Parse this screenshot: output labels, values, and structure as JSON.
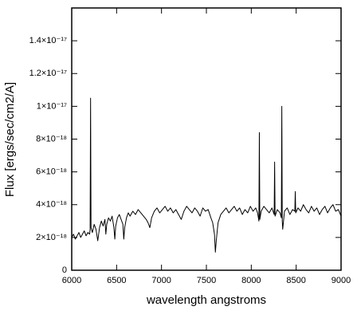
{
  "chart_data": {
    "type": "line",
    "xlabel": "wavelength angstroms",
    "ylabel": "Flux [ergs/sec/cm2/A]",
    "xlim": [
      6000,
      9000
    ],
    "ylim": [
      0,
      1.6e-17
    ],
    "xticks": [
      6000,
      6500,
      7000,
      7500,
      8000,
      8500,
      9000
    ],
    "yticks": [
      0,
      {
        "value": 2e-18,
        "label": "2×10⁻¹⁸"
      },
      {
        "value": 4e-18,
        "label": "4×10⁻¹⁸"
      },
      {
        "value": 6e-18,
        "label": "6×10⁻¹⁸"
      },
      {
        "value": 8e-18,
        "label": "8×10⁻¹⁸"
      },
      {
        "value": 1e-17,
        "label": "1×10⁻¹⁷"
      },
      {
        "value": 1.2e-17,
        "label": "1.2×10⁻¹⁷"
      },
      {
        "value": 1.4e-17,
        "label": "1.4×10⁻¹⁷"
      }
    ],
    "grid": false,
    "color": "#000000",
    "x": [
      6000,
      6020,
      6040,
      6060,
      6080,
      6100,
      6120,
      6140,
      6160,
      6180,
      6200,
      6205,
      6210,
      6215,
      6230,
      6250,
      6270,
      6290,
      6310,
      6330,
      6350,
      6370,
      6380,
      6390,
      6410,
      6430,
      6450,
      6470,
      6480,
      6490,
      6510,
      6530,
      6550,
      6570,
      6580,
      6590,
      6610,
      6630,
      6650,
      6680,
      6710,
      6740,
      6770,
      6800,
      6830,
      6850,
      6870,
      6890,
      6920,
      6950,
      6980,
      7010,
      7040,
      7070,
      7100,
      7130,
      7160,
      7190,
      7220,
      7250,
      7280,
      7310,
      7340,
      7370,
      7400,
      7430,
      7460,
      7490,
      7520,
      7550,
      7570,
      7590,
      7600,
      7610,
      7630,
      7660,
      7690,
      7720,
      7750,
      7780,
      7810,
      7840,
      7870,
      7900,
      7930,
      7960,
      7990,
      8020,
      8050,
      8070,
      8085,
      8090,
      8095,
      8110,
      8140,
      8170,
      8200,
      8230,
      8255,
      8260,
      8265,
      8290,
      8320,
      8335,
      8340,
      8345,
      8350,
      8370,
      8400,
      8430,
      8460,
      8485,
      8490,
      8495,
      8520,
      8550,
      8580,
      8610,
      8640,
      8670,
      8700,
      8730,
      8760,
      8790,
      8820,
      8850,
      8880,
      8910,
      8940,
      8970,
      9000
    ],
    "values": [
      2e-18,
      2.2e-18,
      1.9e-18,
      2.1e-18,
      2.3e-18,
      2e-18,
      2.2e-18,
      2.4e-18,
      2.1e-18,
      2.3e-18,
      2.2e-18,
      2.5e-18,
      1.05e-17,
      2.6e-18,
      2.3e-18,
      2.8e-18,
      2.5e-18,
      1.8e-18,
      2.6e-18,
      3e-18,
      2.7e-18,
      3.1e-18,
      2.2e-18,
      2.8e-18,
      3.2e-18,
      3e-18,
      3.3e-18,
      2.6e-18,
      1.9e-18,
      2.7e-18,
      3.2e-18,
      3.4e-18,
      3.1e-18,
      2.8e-18,
      1.9e-18,
      2.6e-18,
      3.2e-18,
      3.5e-18,
      3.3e-18,
      3.6e-18,
      3.4e-18,
      3.7e-18,
      3.5e-18,
      3.3e-18,
      3.1e-18,
      2.9e-18,
      2.6e-18,
      3.2e-18,
      3.6e-18,
      3.8e-18,
      3.5e-18,
      3.7e-18,
      3.9e-18,
      3.6e-18,
      3.8e-18,
      3.5e-18,
      3.7e-18,
      3.4e-18,
      3.1e-18,
      3.6e-18,
      3.9e-18,
      3.7e-18,
      3.5e-18,
      3.8e-18,
      3.6e-18,
      3.3e-18,
      3.8e-18,
      3.6e-18,
      3.7e-18,
      3.2e-18,
      2.9e-18,
      2.2e-18,
      1.1e-18,
      1.8e-18,
      2.9e-18,
      3.4e-18,
      3.6e-18,
      3.8e-18,
      3.5e-18,
      3.7e-18,
      3.9e-18,
      3.6e-18,
      3.8e-18,
      3.4e-18,
      3.7e-18,
      3.5e-18,
      3.9e-18,
      3.6e-18,
      3.8e-18,
      3.5e-18,
      3e-18,
      8.4e-18,
      3.1e-18,
      3.6e-18,
      3.9e-18,
      3.7e-18,
      3.5e-18,
      3.8e-18,
      3.4e-18,
      6.6e-18,
      3.3e-18,
      3.7e-18,
      3.5e-18,
      3.2e-18,
      1e-17,
      3e-18,
      2.5e-18,
      3.6e-18,
      3.8e-18,
      3.4e-18,
      3.7e-18,
      3.6e-18,
      4.8e-18,
      3.5e-18,
      3.8e-18,
      3.6e-18,
      4e-18,
      3.7e-18,
      3.5e-18,
      3.9e-18,
      3.6e-18,
      3.8e-18,
      3.4e-18,
      3.7e-18,
      3.9e-18,
      3.5e-18,
      3.8e-18,
      4e-18,
      3.6e-18,
      3.7e-18,
      3.3e-18
    ]
  }
}
